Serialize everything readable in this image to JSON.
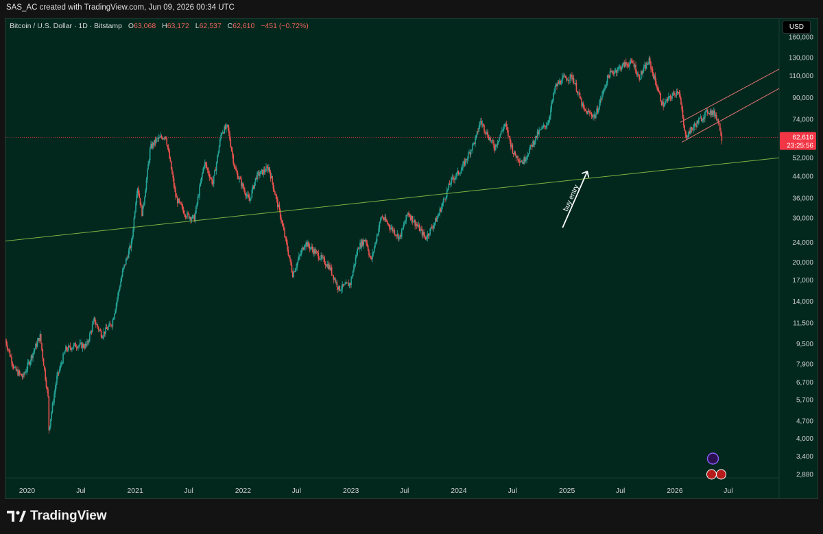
{
  "header": {
    "caption": "SAS_AC created with TradingView.com, Jun 09, 2026 00:34 UTC"
  },
  "legend": {
    "symbol": "Bitcoin / U.S. Dollar · 1D · Bitstamp",
    "open_label": "O",
    "open": "63,068",
    "high_label": "H",
    "high": "63,172",
    "low_label": "L",
    "low": "62,537",
    "close_label": "C",
    "close": "62,610",
    "change": "−451 (−0.72%)"
  },
  "currency_button": "USD",
  "price_tag": {
    "price": "62,610",
    "countdown": "23:25:56"
  },
  "footer": {
    "brand": "TradingView"
  },
  "colors": {
    "background": "#02281e",
    "up": "#26a69a",
    "down": "#ef5350",
    "support": "#7cb342",
    "channel": "#e57373",
    "tag": "#f23645"
  },
  "chart_data": {
    "type": "candlestick",
    "title": "Bitcoin / U.S. Dollar · 1D · Bitstamp",
    "y_scale": "log",
    "yticks": [
      "160,000",
      "130,000",
      "110,000",
      "90,000",
      "74,000",
      "62,610",
      "52,000",
      "44,000",
      "36,000",
      "30,000",
      "24,000",
      "20,000",
      "17,000",
      "14,000",
      "11,500",
      "9,500",
      "7,900",
      "6,700",
      "5,700",
      "4,700",
      "4,000",
      "3,400",
      "2,880"
    ],
    "ytick_values": [
      160000,
      130000,
      110000,
      90000,
      74000,
      62610,
      52000,
      44000,
      36000,
      30000,
      24000,
      20000,
      17000,
      14000,
      11500,
      9500,
      7900,
      6700,
      5700,
      4700,
      4000,
      3400,
      2880
    ],
    "xticks": [
      "2020",
      "Jul",
      "2021",
      "Jul",
      "2022",
      "Jul",
      "2023",
      "Jul",
      "2024",
      "Jul",
      "2025",
      "Jul",
      "2026",
      "Jul"
    ],
    "xtick_dates": [
      "2020-01-01",
      "2020-07-01",
      "2021-01-01",
      "2021-07-01",
      "2022-01-01",
      "2022-07-01",
      "2023-01-01",
      "2023-07-01",
      "2024-01-01",
      "2024-07-01",
      "2025-01-01",
      "2025-07-01",
      "2026-01-01",
      "2026-07-01"
    ],
    "x_range": [
      "2019-10-20",
      "2026-12-20"
    ],
    "price_path": [
      [
        "2019-10-20",
        9800
      ],
      [
        "2019-11-20",
        7500
      ],
      [
        "2019-12-18",
        7000
      ],
      [
        "2020-01-20",
        8700
      ],
      [
        "2020-02-14",
        10200
      ],
      [
        "2020-03-12",
        5800
      ],
      [
        "2020-03-13",
        4200
      ],
      [
        "2020-04-10",
        6900
      ],
      [
        "2020-05-10",
        9000
      ],
      [
        "2020-06-15",
        9400
      ],
      [
        "2020-07-20",
        9300
      ],
      [
        "2020-08-15",
        11800
      ],
      [
        "2020-09-10",
        10300
      ],
      [
        "2020-10-15",
        11500
      ],
      [
        "2020-11-20",
        18500
      ],
      [
        "2020-12-20",
        24000
      ],
      [
        "2021-01-08",
        40500
      ],
      [
        "2021-01-25",
        31000
      ],
      [
        "2021-02-21",
        57000
      ],
      [
        "2021-03-13",
        61000
      ],
      [
        "2021-04-14",
        64000
      ],
      [
        "2021-05-19",
        36000
      ],
      [
        "2021-06-21",
        31000
      ],
      [
        "2021-07-20",
        29800
      ],
      [
        "2021-08-23",
        50000
      ],
      [
        "2021-09-21",
        41000
      ],
      [
        "2021-10-20",
        66000
      ],
      [
        "2021-11-10",
        69000
      ],
      [
        "2021-12-04",
        47000
      ],
      [
        "2022-01-22",
        35000
      ],
      [
        "2022-02-15",
        44000
      ],
      [
        "2022-03-29",
        47500
      ],
      [
        "2022-05-09",
        30000
      ],
      [
        "2022-06-18",
        18000
      ],
      [
        "2022-07-30",
        24000
      ],
      [
        "2022-09-10",
        21500
      ],
      [
        "2022-10-20",
        19200
      ],
      [
        "2022-11-21",
        15700
      ],
      [
        "2022-12-30",
        16500
      ],
      [
        "2023-01-25",
        23000
      ],
      [
        "2023-02-20",
        24800
      ],
      [
        "2023-03-10",
        20200
      ],
      [
        "2023-04-14",
        30500
      ],
      [
        "2023-06-15",
        25000
      ],
      [
        "2023-07-13",
        31500
      ],
      [
        "2023-09-11",
        25000
      ],
      [
        "2023-10-20",
        30000
      ],
      [
        "2023-12-05",
        42000
      ],
      [
        "2024-01-11",
        47000
      ],
      [
        "2024-02-28",
        62000
      ],
      [
        "2024-03-14",
        73000
      ],
      [
        "2024-05-01",
        57000
      ],
      [
        "2024-06-05",
        71000
      ],
      [
        "2024-07-05",
        54000
      ],
      [
        "2024-08-05",
        50000
      ],
      [
        "2024-09-25",
        65000
      ],
      [
        "2024-10-29",
        72000
      ],
      [
        "2024-11-22",
        99000
      ],
      [
        "2024-12-17",
        107000
      ],
      [
        "2025-01-20",
        109000
      ],
      [
        "2025-02-28",
        80000
      ],
      [
        "2025-04-07",
        76000
      ],
      [
        "2025-05-22",
        111000
      ],
      [
        "2025-07-14",
        122000
      ],
      [
        "2025-08-14",
        124000
      ],
      [
        "2025-09-01",
        108000
      ],
      [
        "2025-10-06",
        126000
      ],
      [
        "2025-11-21",
        84000
      ],
      [
        "2025-12-15",
        90000
      ],
      [
        "2026-01-15",
        97000
      ],
      [
        "2026-02-05",
        63000
      ],
      [
        "2026-03-10",
        70000
      ],
      [
        "2026-04-25",
        80000
      ],
      [
        "2026-05-20",
        77000
      ],
      [
        "2026-06-01",
        70000
      ],
      [
        "2026-06-09",
        62610
      ]
    ],
    "lines": [
      {
        "name": "support",
        "from": [
          "2019-10-20",
          24300
        ],
        "to": [
          "2026-12-20",
          52000
        ]
      },
      {
        "name": "channel upper",
        "from": [
          "2026-01-20",
          72000
        ],
        "to": [
          "2026-12-20",
          117000
        ]
      },
      {
        "name": "channel lower",
        "from": [
          "2026-01-25",
          60000
        ],
        "to": [
          "2026-12-20",
          98000
        ]
      }
    ],
    "annotations": [
      {
        "text": "buy entry",
        "at": [
          "2025-02-25",
          34000
        ]
      }
    ]
  }
}
